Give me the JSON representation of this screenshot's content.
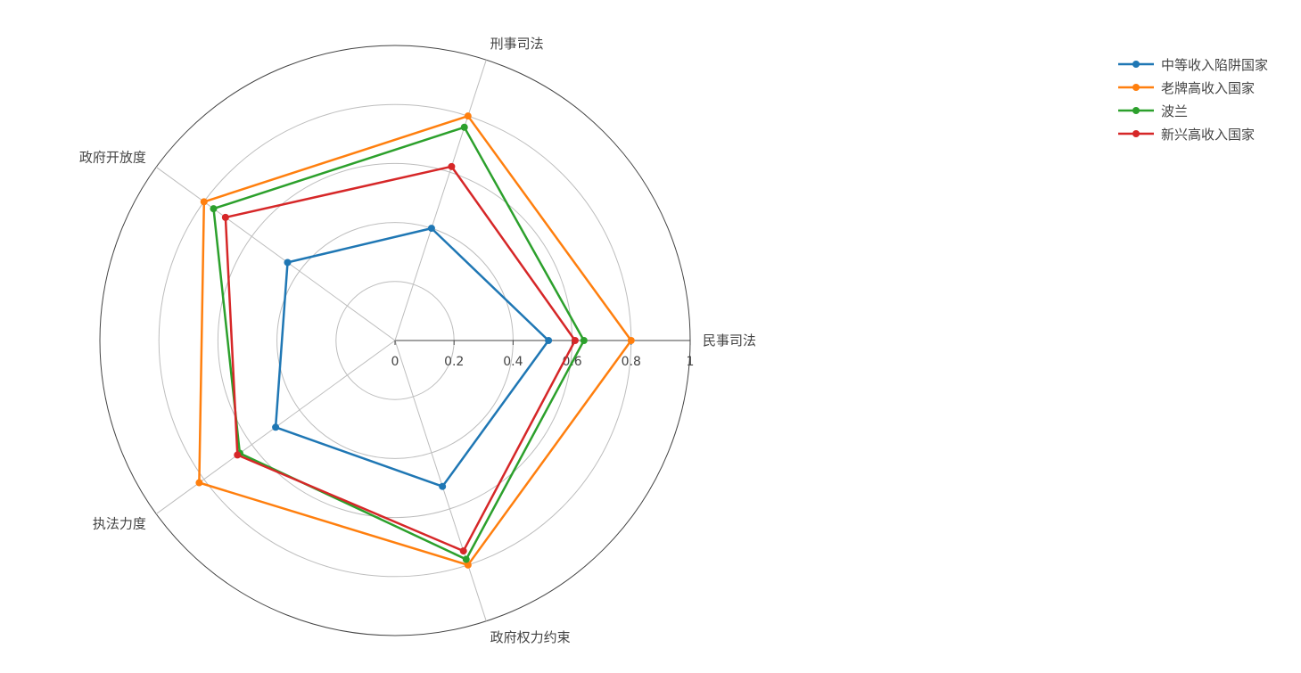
{
  "chart_data": {
    "type": "radar",
    "axes": [
      "民事司法",
      "刑事司法",
      "政府开放度",
      "执法力度",
      "政府权力约束"
    ],
    "radial_range": [
      0,
      1
    ],
    "radial_ticks": [
      "0",
      "0.2",
      "0.4",
      "0.6",
      "0.8",
      "1"
    ],
    "grid": true,
    "legend_position": "top-right",
    "series": [
      {
        "name": "中等收入陷阱国家",
        "color": "#1f77b4",
        "values": [
          0.52,
          0.4,
          0.45,
          0.5,
          0.52
        ]
      },
      {
        "name": "老牌高收入国家",
        "color": "#ff7f0e",
        "values": [
          0.8,
          0.8,
          0.8,
          0.82,
          0.8
        ]
      },
      {
        "name": "波兰",
        "color": "#2ca02c",
        "values": [
          0.64,
          0.76,
          0.76,
          0.65,
          0.78
        ]
      },
      {
        "name": "新兴高收入国家",
        "color": "#d62728",
        "values": [
          0.61,
          0.62,
          0.71,
          0.66,
          0.75
        ]
      }
    ]
  }
}
